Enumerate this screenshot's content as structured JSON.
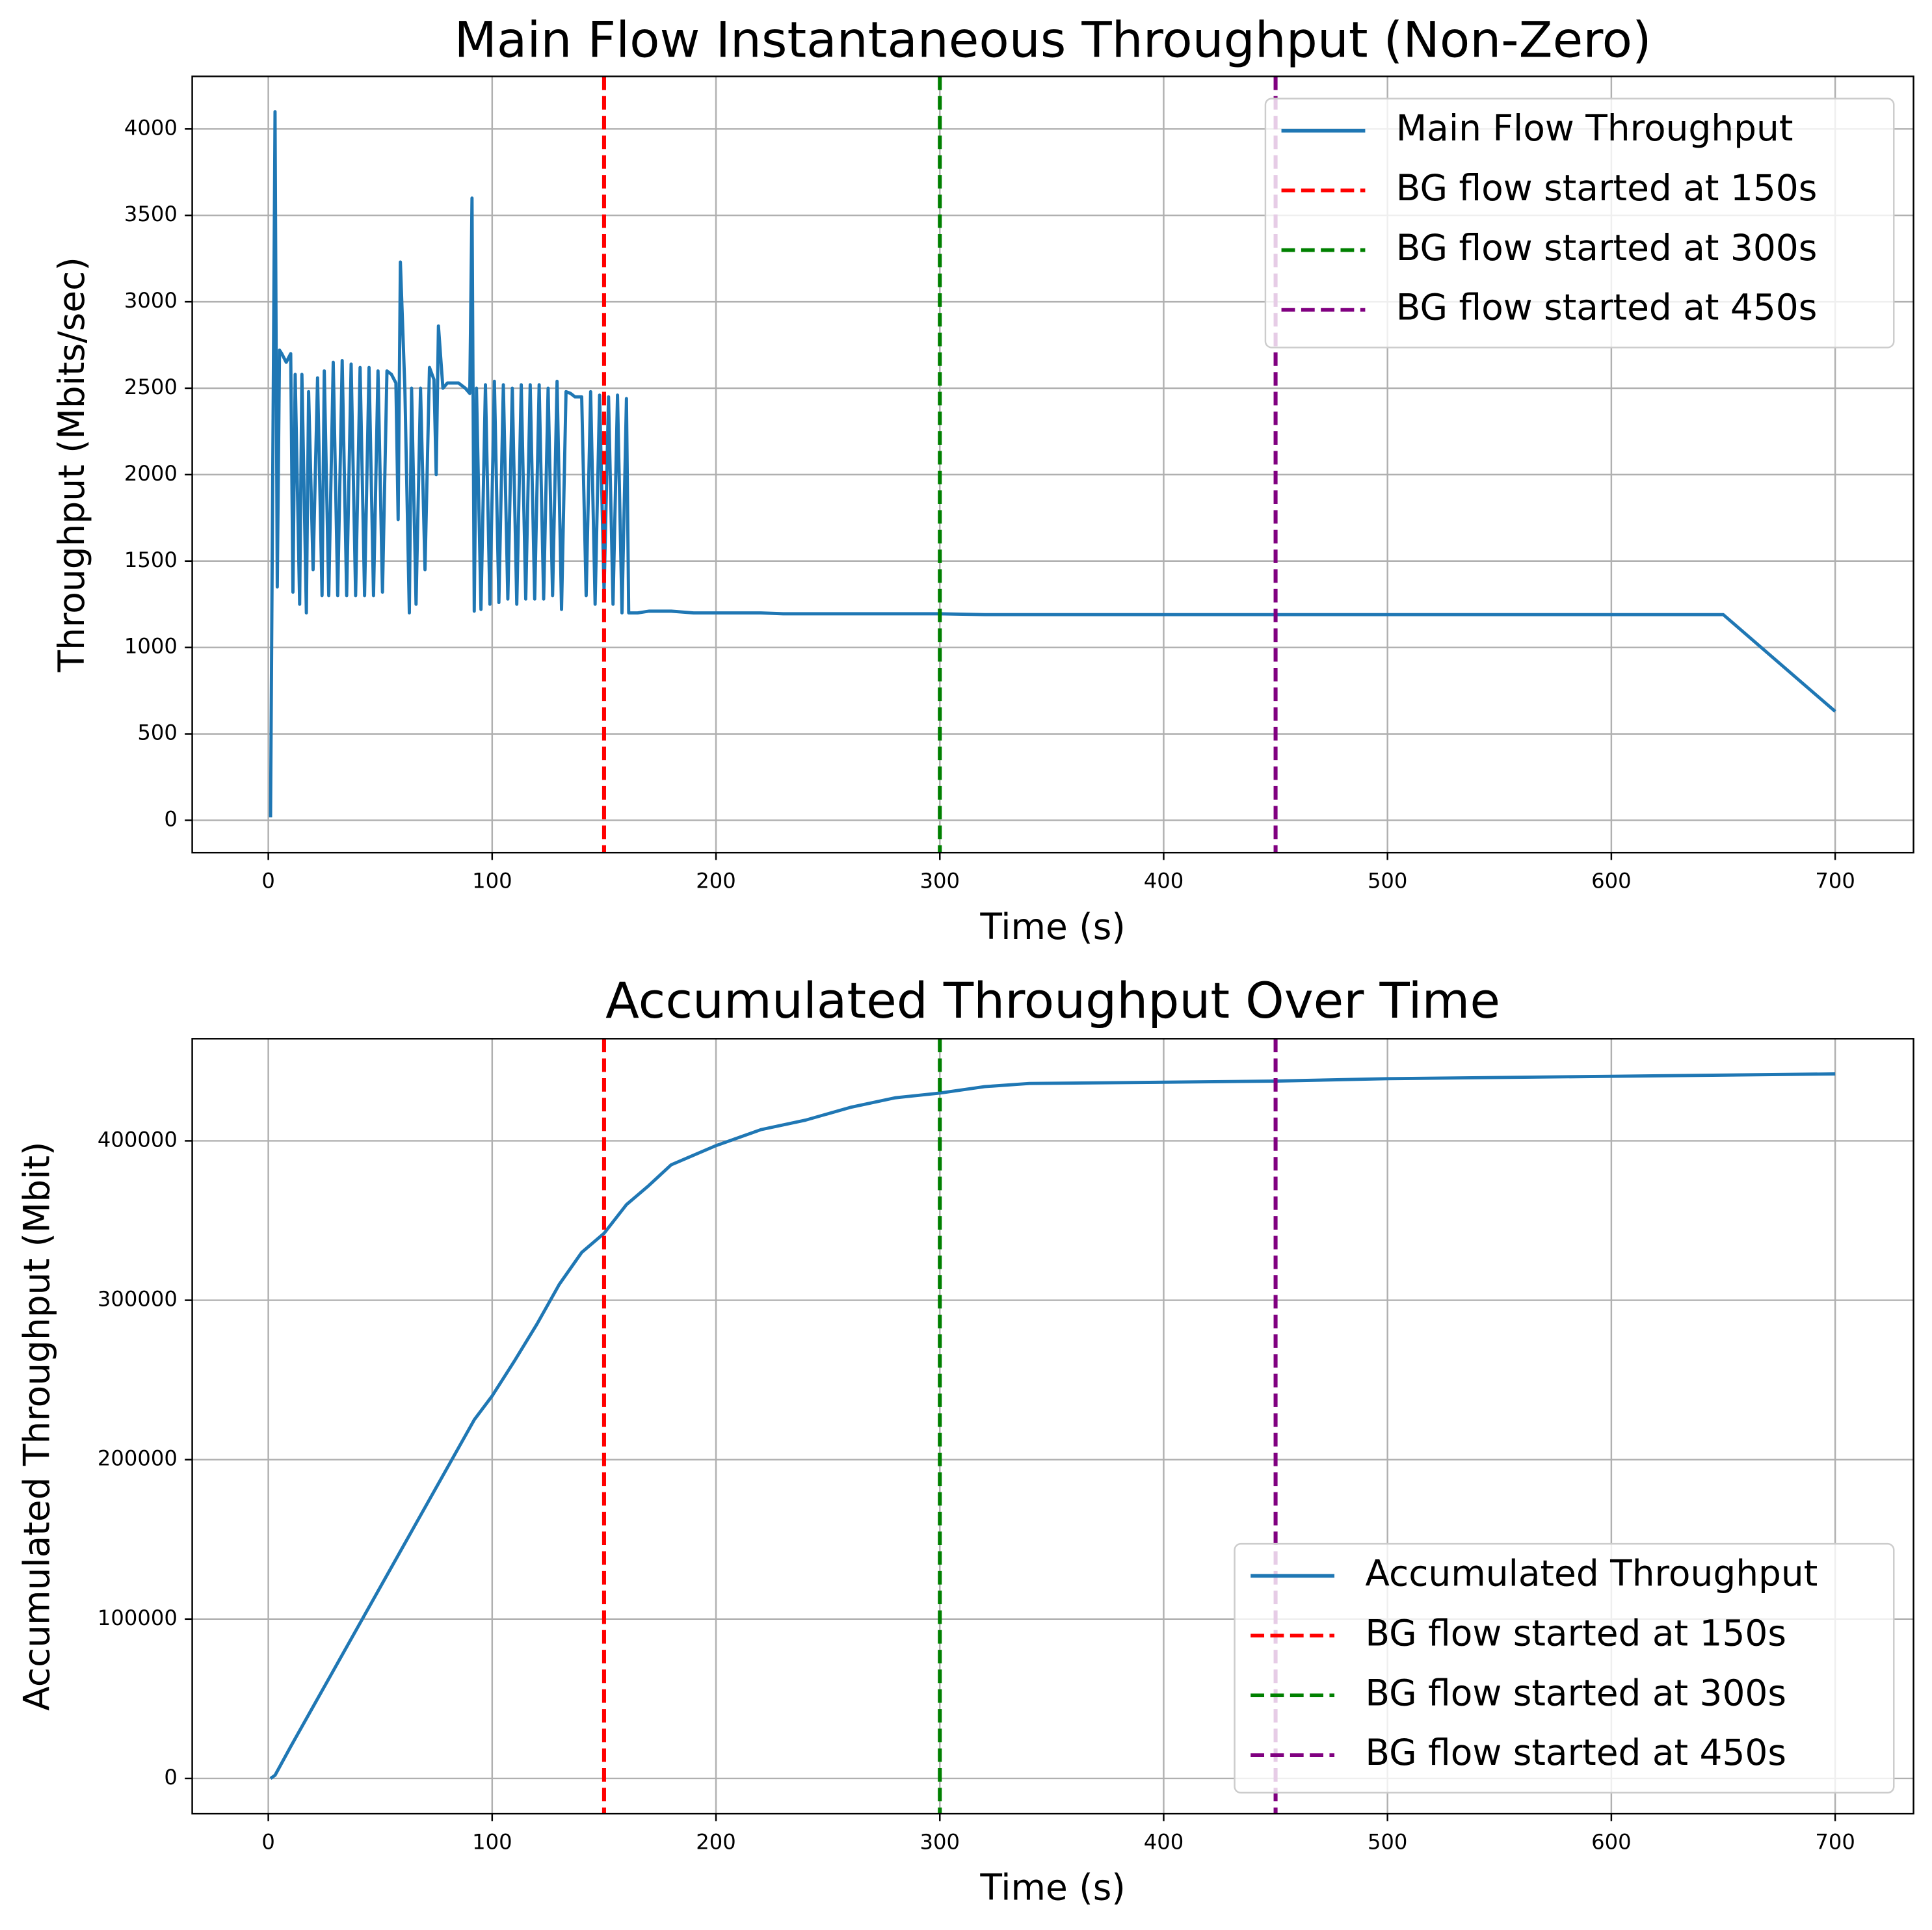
{
  "chart_data": [
    {
      "type": "line",
      "title": "Main Flow Instantaneous Throughput (Non-Zero)",
      "xlabel": "Time (s)",
      "ylabel": "Throughput (Mbits/sec)",
      "xlim": [
        -34,
        735
      ],
      "xticks": [
        0,
        100,
        200,
        300,
        400,
        500,
        600,
        700
      ],
      "ylim": [
        -187,
        4304
      ],
      "yticks": [
        0,
        500,
        1000,
        1500,
        2000,
        2500,
        3000,
        3500,
        4000
      ],
      "grid": true,
      "legend_loc": "upper right",
      "x": [
        1,
        3,
        4,
        5,
        6,
        8,
        10,
        11,
        12,
        14,
        15,
        17,
        18,
        20,
        22,
        24,
        25,
        27,
        29,
        31,
        33,
        35,
        37,
        39,
        41,
        43,
        45,
        47,
        49,
        51,
        53,
        55,
        57,
        58,
        59,
        61,
        63,
        64,
        66,
        68,
        70,
        72,
        74,
        75,
        76,
        78,
        80,
        85,
        88,
        90,
        91,
        92,
        93,
        95,
        97,
        99,
        101,
        103,
        105,
        107,
        109,
        111,
        113,
        115,
        117,
        119,
        121,
        123,
        125,
        127,
        129,
        131,
        133,
        135,
        137,
        140,
        142,
        144,
        146,
        148,
        150,
        152,
        154,
        156,
        158,
        160,
        161,
        165,
        170,
        180,
        190,
        200,
        220,
        230,
        250,
        280,
        300,
        320,
        400,
        500,
        600,
        650,
        700
      ],
      "series": [
        {
          "name": "Main Flow Throughput",
          "color": "#1f77b4",
          "values": [
            17,
            4100,
            1350,
            2720,
            2700,
            2650,
            2700,
            1320,
            2580,
            1250,
            2580,
            1200,
            2480,
            1450,
            2560,
            1300,
            2600,
            1300,
            2650,
            1300,
            2660,
            1300,
            2640,
            1300,
            2620,
            1300,
            2620,
            1300,
            2600,
            1320,
            2600,
            2580,
            2530,
            1740,
            3230,
            2500,
            1200,
            2500,
            1250,
            2500,
            1450,
            2620,
            2550,
            2000,
            2860,
            2500,
            2530,
            2530,
            2500,
            2470,
            3600,
            1210,
            2500,
            1220,
            2520,
            1250,
            2540,
            1260,
            2520,
            1280,
            2500,
            1250,
            2520,
            1280,
            2520,
            1280,
            2520,
            1280,
            2500,
            1300,
            2540,
            1220,
            2480,
            2470,
            2450,
            2450,
            1300,
            2480,
            1250,
            2460,
            1320,
            2450,
            1250,
            2460,
            1200,
            2440,
            1200,
            1200,
            1210,
            1210,
            1200,
            1200,
            1200,
            1195,
            1195,
            1195,
            1195,
            1190,
            1190,
            1190,
            1190,
            1190,
            630
          ]
        }
      ],
      "vlines": [
        {
          "x": 150,
          "color": "red",
          "name": "BG flow started at 150s"
        },
        {
          "x": 300,
          "color": "green",
          "name": "BG flow started at 300s"
        },
        {
          "x": 450,
          "color": "purple",
          "name": "BG flow started at 450s"
        }
      ]
    },
    {
      "type": "line",
      "title": "Accumulated Throughput Over Time",
      "xlabel": "Time (s)",
      "ylabel": "Accumulated Throughput (Mbit)",
      "xlim": [
        -34,
        735
      ],
      "xticks": [
        0,
        100,
        200,
        300,
        400,
        500,
        600,
        700
      ],
      "ylim": [
        -22100,
        464100
      ],
      "yticks": [
        0,
        100000,
        200000,
        300000,
        400000
      ],
      "grid": true,
      "legend_loc": "lower right",
      "x": [
        1,
        3,
        10,
        20,
        40,
        60,
        80,
        92,
        100,
        110,
        120,
        130,
        140,
        150,
        160,
        170,
        180,
        200,
        220,
        240,
        260,
        280,
        300,
        320,
        340,
        380,
        450,
        500,
        600,
        700
      ],
      "series": [
        {
          "name": "Accumulated Throughput",
          "color": "#1f77b4",
          "values": [
            0,
            2000,
            20000,
            45000,
            95000,
            145000,
            195000,
            225000,
            240000,
            262000,
            285000,
            310000,
            330000,
            342000,
            360000,
            372000,
            385000,
            397000,
            407000,
            413000,
            421000,
            427000,
            430000,
            434000,
            436000,
            436500,
            437500,
            439000,
            440500,
            442000
          ]
        }
      ],
      "vlines": [
        {
          "x": 150,
          "color": "red",
          "name": "BG flow started at 150s"
        },
        {
          "x": 300,
          "color": "green",
          "name": "BG flow started at 300s"
        },
        {
          "x": 450,
          "color": "purple",
          "name": "BG flow started at 450s"
        }
      ]
    }
  ]
}
